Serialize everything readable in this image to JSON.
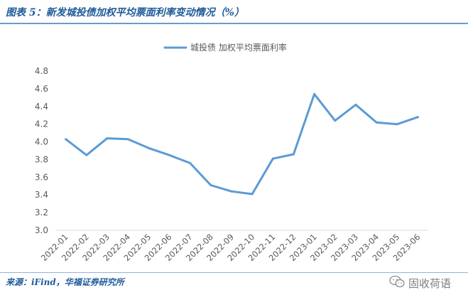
{
  "figure": {
    "title": "图表 5：新发城投债加权平均票面利率变动情况（%）",
    "source": "来源：iFind，华福证券研究所"
  },
  "watermark": {
    "text": "固收荷语",
    "icon": "wechat-icon"
  },
  "colors": {
    "series": "#5b9bd5",
    "axis": "#d9d9d9",
    "text": "#595959",
    "title": "#1f5b99"
  },
  "chart_data": {
    "type": "line",
    "x": [
      "2022-01",
      "2022-02",
      "2022-03",
      "2022-04",
      "2022-05",
      "2022-06",
      "2022-07",
      "2022-08",
      "2022-09",
      "2022-10",
      "2022-11",
      "2022-12",
      "2023-01",
      "2023-02",
      "2023-03",
      "2023-04",
      "2023-05",
      "2023-06"
    ],
    "series": [
      {
        "name": "城投债 加权平均票面利率",
        "values": [
          4.03,
          3.85,
          4.04,
          4.03,
          3.93,
          3.85,
          3.76,
          3.51,
          3.44,
          3.41,
          3.81,
          3.86,
          4.54,
          4.24,
          4.42,
          4.22,
          4.2,
          4.28
        ]
      }
    ],
    "title": "",
    "xlabel": "",
    "ylabel": "",
    "ylim": [
      3.0,
      4.8
    ],
    "yticks": [
      "3.0",
      "3.2",
      "3.4",
      "3.6",
      "3.8",
      "4.0",
      "4.2",
      "4.4",
      "4.6",
      "4.8"
    ],
    "grid": false,
    "legend": "top-center"
  }
}
